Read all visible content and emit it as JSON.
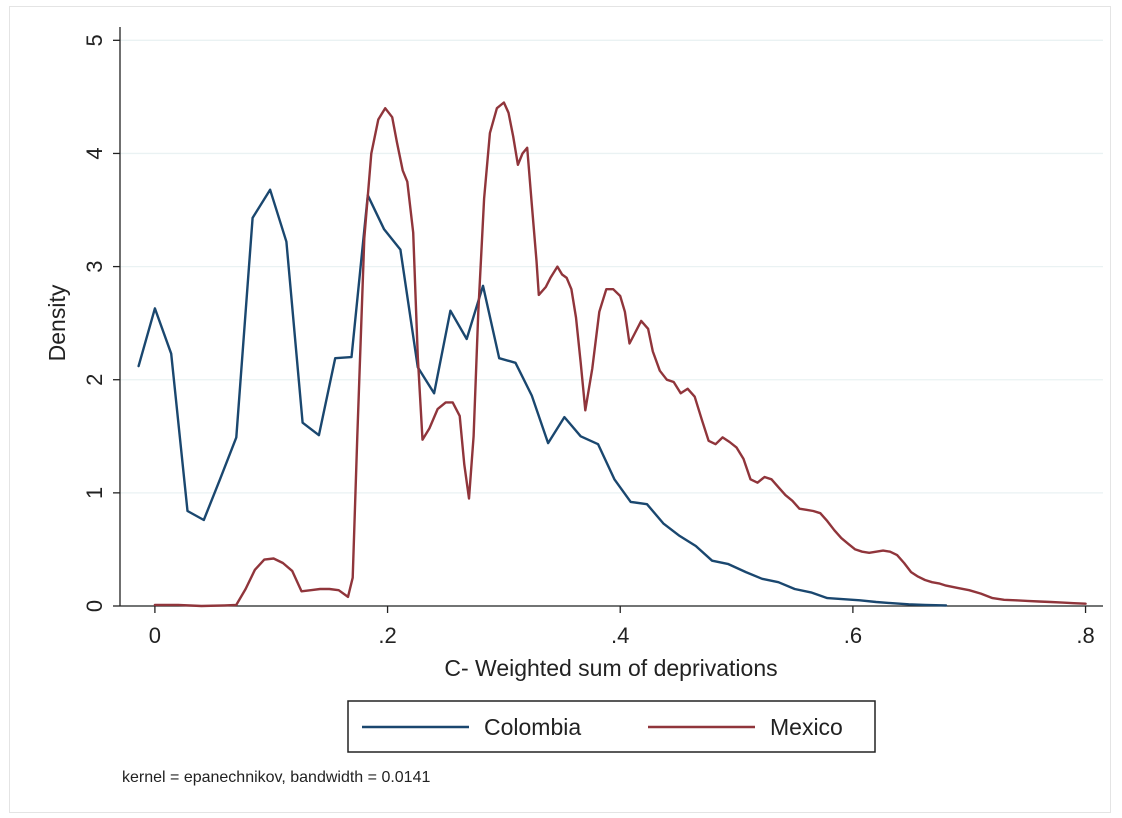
{
  "chart_data": {
    "type": "line",
    "title": "",
    "xlabel": "C- Weighted sum of deprivations",
    "ylabel": "Density",
    "xlim": [
      -0.03,
      0.815
    ],
    "ylim": [
      0,
      5.1
    ],
    "xticks": [
      0,
      0.2,
      0.4,
      0.6,
      0.8
    ],
    "xtick_labels": [
      "0",
      ".2",
      ".4",
      ".6",
      ".8"
    ],
    "yticks": [
      0,
      1,
      2,
      3,
      4,
      5
    ],
    "ytick_labels": [
      "0",
      "1",
      "2",
      "3",
      "4",
      "5"
    ],
    "grid": true,
    "legend_position": "bottom",
    "note": "kernel = epanechnikov, bandwidth = 0.0141",
    "series": [
      {
        "name": "Colombia",
        "color": "#1a476f",
        "points": [
          [
            -0.014,
            2.12
          ],
          [
            0.0,
            2.63
          ],
          [
            0.014,
            2.23
          ],
          [
            0.028,
            0.84
          ],
          [
            0.042,
            0.76
          ],
          [
            0.056,
            1.12
          ],
          [
            0.07,
            1.49
          ],
          [
            0.084,
            3.43
          ],
          [
            0.099,
            3.68
          ],
          [
            0.113,
            3.22
          ],
          [
            0.127,
            1.62
          ],
          [
            0.141,
            1.51
          ],
          [
            0.155,
            2.19
          ],
          [
            0.169,
            2.2
          ],
          [
            0.183,
            3.63
          ],
          [
            0.197,
            3.33
          ],
          [
            0.211,
            3.15
          ],
          [
            0.226,
            2.11
          ],
          [
            0.24,
            1.88
          ],
          [
            0.254,
            2.61
          ],
          [
            0.268,
            2.36
          ],
          [
            0.282,
            2.83
          ],
          [
            0.296,
            2.19
          ],
          [
            0.31,
            2.15
          ],
          [
            0.324,
            1.86
          ],
          [
            0.338,
            1.44
          ],
          [
            0.352,
            1.67
          ],
          [
            0.366,
            1.5
          ],
          [
            0.381,
            1.43
          ],
          [
            0.395,
            1.12
          ],
          [
            0.409,
            0.92
          ],
          [
            0.423,
            0.9
          ],
          [
            0.437,
            0.73
          ],
          [
            0.451,
            0.62
          ],
          [
            0.465,
            0.53
          ],
          [
            0.479,
            0.4
          ],
          [
            0.493,
            0.37
          ],
          [
            0.508,
            0.3
          ],
          [
            0.522,
            0.24
          ],
          [
            0.536,
            0.21
          ],
          [
            0.55,
            0.15
          ],
          [
            0.564,
            0.12
          ],
          [
            0.578,
            0.07
          ],
          [
            0.592,
            0.06
          ],
          [
            0.606,
            0.05
          ],
          [
            0.62,
            0.035
          ],
          [
            0.634,
            0.025
          ],
          [
            0.648,
            0.015
          ],
          [
            0.662,
            0.01
          ],
          [
            0.68,
            0.005
          ]
        ]
      },
      {
        "name": "Mexico",
        "color": "#90353b",
        "points": [
          [
            0.0,
            0.01
          ],
          [
            0.02,
            0.01
          ],
          [
            0.04,
            0.0
          ],
          [
            0.06,
            0.005
          ],
          [
            0.07,
            0.01
          ],
          [
            0.078,
            0.15
          ],
          [
            0.086,
            0.32
          ],
          [
            0.094,
            0.41
          ],
          [
            0.102,
            0.42
          ],
          [
            0.11,
            0.38
          ],
          [
            0.118,
            0.31
          ],
          [
            0.126,
            0.13
          ],
          [
            0.134,
            0.14
          ],
          [
            0.142,
            0.15
          ],
          [
            0.15,
            0.15
          ],
          [
            0.158,
            0.14
          ],
          [
            0.166,
            0.08
          ],
          [
            0.17,
            0.25
          ],
          [
            0.174,
            1.5
          ],
          [
            0.18,
            3.25
          ],
          [
            0.186,
            4.0
          ],
          [
            0.192,
            4.3
          ],
          [
            0.198,
            4.4
          ],
          [
            0.204,
            4.32
          ],
          [
            0.208,
            4.1
          ],
          [
            0.213,
            3.85
          ],
          [
            0.217,
            3.75
          ],
          [
            0.222,
            3.3
          ],
          [
            0.226,
            2.2
          ],
          [
            0.23,
            1.47
          ],
          [
            0.236,
            1.57
          ],
          [
            0.243,
            1.74
          ],
          [
            0.25,
            1.8
          ],
          [
            0.256,
            1.8
          ],
          [
            0.262,
            1.68
          ],
          [
            0.266,
            1.25
          ],
          [
            0.27,
            0.95
          ],
          [
            0.274,
            1.5
          ],
          [
            0.278,
            2.6
          ],
          [
            0.283,
            3.6
          ],
          [
            0.288,
            4.18
          ],
          [
            0.294,
            4.4
          ],
          [
            0.3,
            4.45
          ],
          [
            0.304,
            4.36
          ],
          [
            0.308,
            4.15
          ],
          [
            0.312,
            3.9
          ],
          [
            0.316,
            4.0
          ],
          [
            0.32,
            4.05
          ],
          [
            0.324,
            3.55
          ],
          [
            0.328,
            3.05
          ],
          [
            0.33,
            2.75
          ],
          [
            0.336,
            2.82
          ],
          [
            0.34,
            2.9
          ],
          [
            0.346,
            3.0
          ],
          [
            0.35,
            2.93
          ],
          [
            0.354,
            2.9
          ],
          [
            0.358,
            2.8
          ],
          [
            0.362,
            2.55
          ],
          [
            0.366,
            2.15
          ],
          [
            0.37,
            1.73
          ],
          [
            0.376,
            2.1
          ],
          [
            0.382,
            2.6
          ],
          [
            0.388,
            2.8
          ],
          [
            0.394,
            2.8
          ],
          [
            0.4,
            2.74
          ],
          [
            0.404,
            2.6
          ],
          [
            0.408,
            2.32
          ],
          [
            0.412,
            2.4
          ],
          [
            0.418,
            2.52
          ],
          [
            0.424,
            2.45
          ],
          [
            0.428,
            2.25
          ],
          [
            0.434,
            2.08
          ],
          [
            0.44,
            2.0
          ],
          [
            0.446,
            1.98
          ],
          [
            0.452,
            1.88
          ],
          [
            0.458,
            1.92
          ],
          [
            0.464,
            1.85
          ],
          [
            0.47,
            1.65
          ],
          [
            0.476,
            1.46
          ],
          [
            0.482,
            1.43
          ],
          [
            0.488,
            1.49
          ],
          [
            0.494,
            1.45
          ],
          [
            0.5,
            1.4
          ],
          [
            0.506,
            1.3
          ],
          [
            0.512,
            1.12
          ],
          [
            0.518,
            1.09
          ],
          [
            0.524,
            1.14
          ],
          [
            0.53,
            1.12
          ],
          [
            0.536,
            1.05
          ],
          [
            0.542,
            0.98
          ],
          [
            0.548,
            0.93
          ],
          [
            0.554,
            0.86
          ],
          [
            0.56,
            0.85
          ],
          [
            0.566,
            0.84
          ],
          [
            0.572,
            0.82
          ],
          [
            0.578,
            0.75
          ],
          [
            0.584,
            0.67
          ],
          [
            0.59,
            0.6
          ],
          [
            0.596,
            0.55
          ],
          [
            0.602,
            0.5
          ],
          [
            0.608,
            0.48
          ],
          [
            0.614,
            0.47
          ],
          [
            0.62,
            0.48
          ],
          [
            0.626,
            0.49
          ],
          [
            0.632,
            0.48
          ],
          [
            0.638,
            0.45
          ],
          [
            0.644,
            0.38
          ],
          [
            0.65,
            0.3
          ],
          [
            0.656,
            0.26
          ],
          [
            0.662,
            0.23
          ],
          [
            0.668,
            0.21
          ],
          [
            0.674,
            0.2
          ],
          [
            0.68,
            0.18
          ],
          [
            0.69,
            0.16
          ],
          [
            0.7,
            0.14
          ],
          [
            0.71,
            0.11
          ],
          [
            0.72,
            0.07
          ],
          [
            0.73,
            0.055
          ],
          [
            0.74,
            0.05
          ],
          [
            0.75,
            0.045
          ],
          [
            0.76,
            0.04
          ],
          [
            0.77,
            0.035
          ],
          [
            0.78,
            0.03
          ],
          [
            0.79,
            0.025
          ],
          [
            0.8,
            0.02
          ]
        ]
      }
    ]
  }
}
